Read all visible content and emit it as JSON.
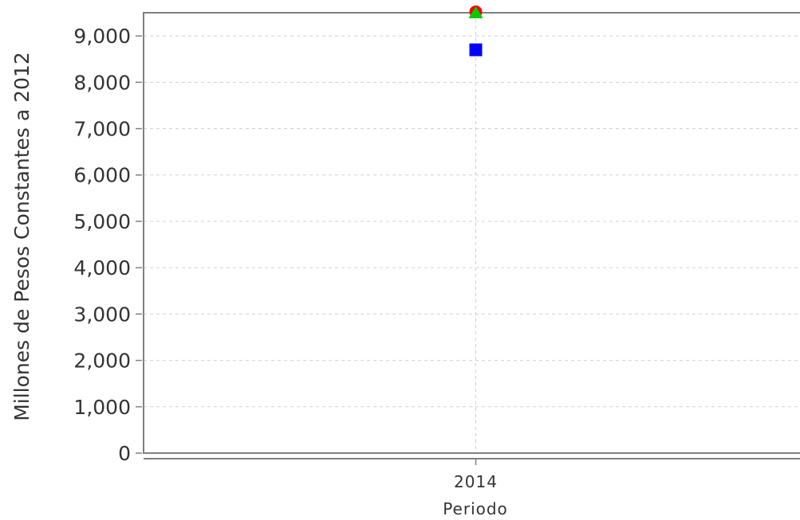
{
  "chart_data": {
    "type": "scatter",
    "title": "",
    "xlabel": "Periodo",
    "ylabel": "Millones de Pesos Constantes a 2012",
    "x_categories": [
      "2014"
    ],
    "ylim": [
      0,
      9500
    ],
    "y_ticks": [
      0,
      1000,
      2000,
      3000,
      4000,
      5000,
      6000,
      7000,
      8000,
      9000
    ],
    "y_tick_labels": [
      "0",
      "1,000",
      "2,000",
      "3,000",
      "4,000",
      "5,000",
      "6,000",
      "7,000",
      "8,000",
      "9,000"
    ],
    "grid": true,
    "legend": "none",
    "series": [
      {
        "color": "#ff0000",
        "marker": "circle",
        "values": [
          9520
        ]
      },
      {
        "color": "#0000ff",
        "marker": "square",
        "values": [
          8700
        ]
      },
      {
        "color": "#00cc00",
        "marker": "triangle",
        "values": [
          9500
        ]
      }
    ]
  }
}
